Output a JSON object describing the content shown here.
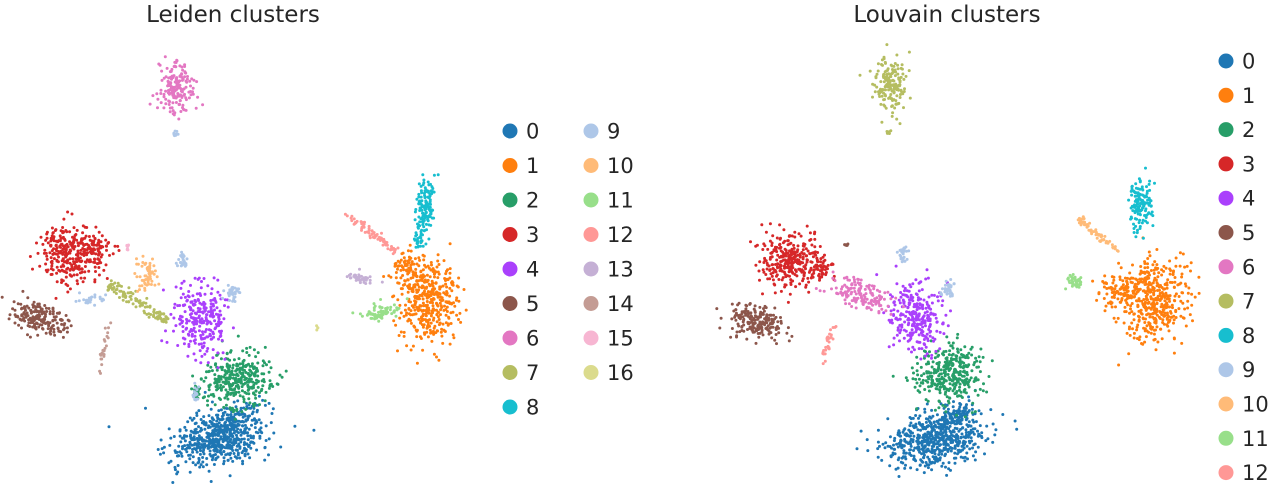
{
  "chart_data": [
    {
      "type": "scatter",
      "title": "Leiden clusters",
      "xlabel": "",
      "ylabel": "",
      "axes": "off",
      "grid": false,
      "legend": {
        "placement": "right",
        "columns": 2
      },
      "x": [],
      "y": [],
      "series": [
        {
          "name": "0",
          "color": "#1f77b4"
        },
        {
          "name": "1",
          "color": "#ff7f0e"
        },
        {
          "name": "2",
          "color": "#279e68"
        },
        {
          "name": "3",
          "color": "#d62728"
        },
        {
          "name": "4",
          "color": "#aa40fc"
        },
        {
          "name": "5",
          "color": "#8c564b"
        },
        {
          "name": "6",
          "color": "#e377c2"
        },
        {
          "name": "7",
          "color": "#b5bd61"
        },
        {
          "name": "8",
          "color": "#17becf"
        },
        {
          "name": "9",
          "color": "#aec7e8"
        },
        {
          "name": "10",
          "color": "#ffbb78"
        },
        {
          "name": "11",
          "color": "#98df8a"
        },
        {
          "name": "12",
          "color": "#ff9896"
        },
        {
          "name": "13",
          "color": "#c5b0d5"
        },
        {
          "name": "14",
          "color": "#c49c94"
        },
        {
          "name": "15",
          "color": "#f7b6d2"
        },
        {
          "name": "16",
          "color": "#dbdb8d"
        }
      ]
    },
    {
      "type": "scatter",
      "title": "Louvain clusters",
      "xlabel": "",
      "ylabel": "",
      "axes": "off",
      "grid": false,
      "legend": {
        "placement": "right",
        "columns": 1
      },
      "x": [],
      "y": [],
      "series": [
        {
          "name": "0",
          "color": "#1f77b4"
        },
        {
          "name": "1",
          "color": "#ff7f0e"
        },
        {
          "name": "2",
          "color": "#279e68"
        },
        {
          "name": "3",
          "color": "#d62728"
        },
        {
          "name": "4",
          "color": "#aa40fc"
        },
        {
          "name": "5",
          "color": "#8c564b"
        },
        {
          "name": "6",
          "color": "#e377c2"
        },
        {
          "name": "7",
          "color": "#b5bd61"
        },
        {
          "name": "8",
          "color": "#17becf"
        },
        {
          "name": "9",
          "color": "#aec7e8"
        },
        {
          "name": "10",
          "color": "#ffbb78"
        },
        {
          "name": "11",
          "color": "#98df8a"
        },
        {
          "name": "12",
          "color": "#ff9896"
        }
      ]
    }
  ]
}
